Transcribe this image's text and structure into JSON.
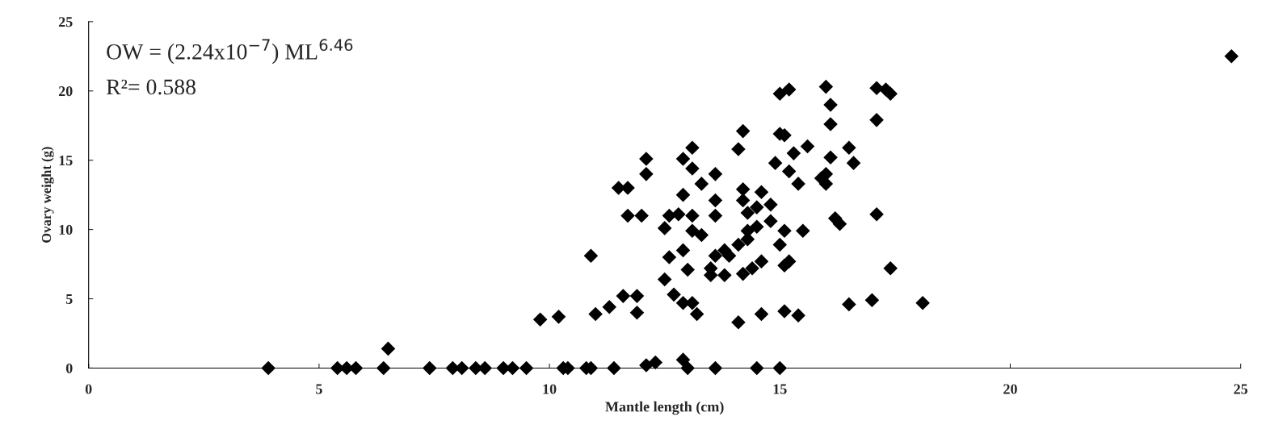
{
  "chart_data": {
    "type": "scatter",
    "xlabel": "Mantle length (cm)",
    "ylabel": "Ovary weight (g)",
    "annotations": [
      "OW = (2.24x10$^{−7}$) ML$^{6.46}$",
      "R²= 0.588"
    ],
    "xlim": [
      0,
      25
    ],
    "xticks": [
      0,
      5,
      10,
      15,
      20,
      25
    ],
    "ylim": [
      0,
      25
    ],
    "yticks": [
      0,
      5,
      10,
      15,
      20,
      25
    ],
    "grid": false,
    "marker": "diamond",
    "series": [
      {
        "color": "#000000",
        "x": [
          3.9,
          5.4,
          5.6,
          5.8,
          6.4,
          6.5,
          7.4,
          7.9,
          8.1,
          8.4,
          8.6,
          9.0,
          9.2,
          9.5,
          9.8,
          10.2,
          10.3,
          10.4,
          10.8,
          10.9,
          11.4,
          12.1,
          12.3,
          12.9,
          13.0,
          13.6,
          14.5,
          15.0,
          10.9,
          11.0,
          11.3,
          11.6,
          11.9,
          11.9,
          12.5,
          12.7,
          12.9,
          13.1,
          13.2,
          14.1,
          14.6,
          15.1,
          15.4,
          12.6,
          12.9,
          13.0,
          13.5,
          13.5,
          13.8,
          14.2,
          14.4,
          14.6,
          15.1,
          15.2,
          13.6,
          13.9,
          13.8,
          14.1,
          14.3,
          15.0,
          11.7,
          12.0,
          12.6,
          12.8,
          13.1,
          12.5,
          13.1,
          13.3,
          13.6,
          14.3,
          14.5,
          14.8,
          14.3,
          14.5,
          15.1,
          15.5,
          11.5,
          11.7,
          12.9,
          13.6,
          14.2,
          14.6,
          14.2,
          14.8,
          12.1,
          12.1,
          13.1,
          12.9,
          13.1,
          13.3,
          13.6,
          14.1,
          14.2,
          15.0,
          15.1,
          15.6,
          15.3,
          14.9,
          15.2,
          15.4,
          16.1,
          16.0,
          16.1,
          16.2,
          16.3,
          16.1,
          15.9,
          16.0,
          16.5,
          16.6,
          17.1,
          17.1,
          17.4,
          16.5,
          17.0,
          18.1,
          15.0,
          15.2,
          16.0,
          17.1,
          17.3,
          17.4,
          24.8
        ],
        "values": [
          0,
          0,
          0,
          0,
          0,
          1.4,
          0,
          0,
          0,
          0,
          0,
          0,
          0,
          0,
          3.5,
          3.7,
          0,
          0,
          0,
          0,
          0,
          0.2,
          0.4,
          0.6,
          0,
          0,
          0,
          0,
          8.1,
          3.9,
          4.4,
          5.2,
          5.2,
          4.0,
          6.4,
          5.3,
          4.7,
          4.7,
          3.9,
          3.3,
          3.9,
          4.1,
          3.8,
          8.0,
          8.5,
          7.1,
          7.2,
          6.7,
          6.7,
          6.8,
          7.2,
          7.7,
          7.4,
          7.7,
          8.1,
          8.1,
          8.5,
          8.9,
          9.3,
          8.9,
          11.0,
          11.0,
          11.0,
          11.1,
          11.0,
          10.1,
          9.9,
          9.6,
          11.0,
          11.2,
          11.6,
          10.6,
          9.9,
          10.2,
          9.9,
          9.9,
          13.0,
          13.0,
          12.5,
          12.1,
          12.9,
          12.7,
          12.1,
          11.8,
          15.1,
          14.0,
          15.9,
          15.1,
          14.4,
          13.3,
          14.0,
          15.8,
          17.1,
          16.9,
          16.8,
          16.0,
          15.5,
          14.8,
          14.2,
          13.3,
          17.6,
          14.0,
          15.2,
          10.8,
          10.4,
          19.0,
          13.7,
          13.3,
          15.9,
          14.8,
          11.1,
          17.9,
          7.2,
          4.6,
          4.9,
          4.7,
          19.8,
          20.1,
          20.3,
          20.2,
          20.1,
          19.8,
          22.5
        ]
      }
    ]
  }
}
